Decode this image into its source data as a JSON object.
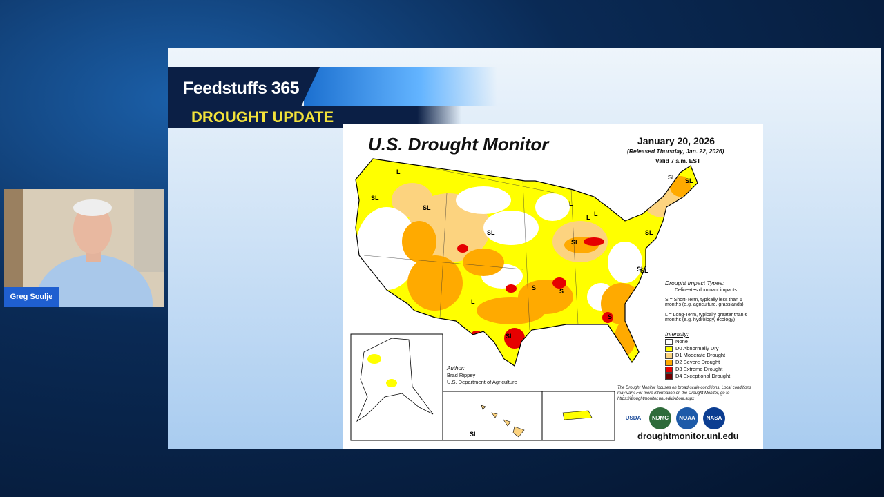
{
  "broadcast": {
    "brand": "Feedstuffs 365",
    "segment": "DROUGHT UPDATE",
    "presenter": "Greg Soulje"
  },
  "map": {
    "title": "U.S. Drought Monitor",
    "date": "January 20, 2026",
    "released": "(Released Thursday, Jan. 22, 2026)",
    "valid": "Valid 7 a.m. EST",
    "impact_types": {
      "title": "Drought Impact Types:",
      "items": [
        "Delineates dominant impacts",
        "S = Short-Term, typically less than 6 months (e.g. agriculture, grasslands)",
        "L = Long-Term, typically greater than 6 months (e.g. hydrology, ecology)"
      ]
    },
    "intensity": {
      "title": "Intensity:",
      "levels": [
        {
          "label": "None",
          "color": "#ffffff"
        },
        {
          "label": "D0 Abnormally Dry",
          "color": "#ffff00"
        },
        {
          "label": "D1 Moderate Drought",
          "color": "#fcd37f"
        },
        {
          "label": "D2 Severe Drought",
          "color": "#ffaa00"
        },
        {
          "label": "D3 Extreme Drought",
          "color": "#e60000"
        },
        {
          "label": "D4 Exceptional Drought",
          "color": "#730000"
        }
      ]
    },
    "author": {
      "heading": "Author:",
      "name": "Brad Rippey",
      "org": "U.S. Department of Agriculture"
    },
    "note": "The Drought Monitor focuses on broad-scale conditions. Local conditions may vary. For more information on the Drought Monitor, go to https://droughtmonitor.unl.edu/About.aspx",
    "logos": [
      "USDA",
      "NDMC",
      "NOAA",
      "NASA"
    ],
    "url": "droughtmonitor.unl.edu",
    "region_labels": [
      "L",
      "SL",
      "SL",
      "SL",
      "SL",
      "SL",
      "L",
      "L",
      "L",
      "SL",
      "SL",
      "S",
      "S",
      "L",
      "SL",
      "SL",
      "S",
      "SL",
      "SL"
    ]
  }
}
